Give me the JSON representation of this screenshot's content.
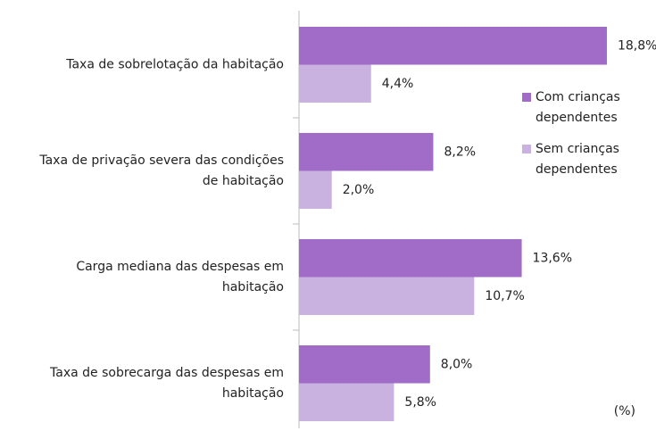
{
  "chart_data": {
    "type": "bar",
    "orientation": "horizontal",
    "categories": [
      "Taxa de sobrelotação da habitação",
      "Taxa de privação severa das condições\nde habitação",
      "Carga mediana das despesas em\nhabitação",
      "Taxa de sobrecarga das despesas em\nhabitação"
    ],
    "series": [
      {
        "name": "Com crianças\ndependentes",
        "color": "#a06cc8",
        "values": [
          18.8,
          8.2,
          13.6,
          8.0
        ],
        "value_labels": [
          "18,8%",
          "8,2%",
          "13,6%",
          "8,0%"
        ]
      },
      {
        "name": "Sem crianças\ndependentes",
        "color": "#c9b1e0",
        "values": [
          4.4,
          2.0,
          10.7,
          5.8
        ],
        "value_labels": [
          "4,4%",
          "2,0%",
          "10,7%",
          "5,8%"
        ]
      }
    ],
    "xlim": [
      0,
      20
    ],
    "annotation": "(%)"
  }
}
